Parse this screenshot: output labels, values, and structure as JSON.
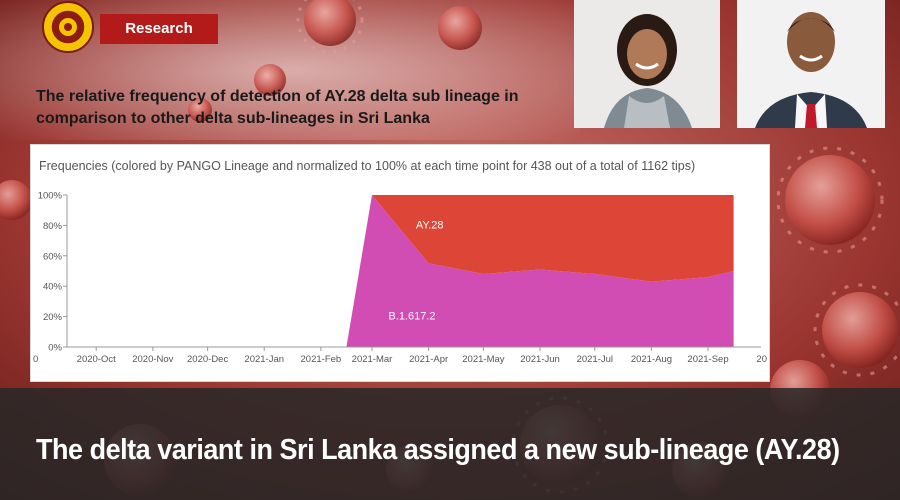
{
  "header": {
    "tag_label": "Research",
    "logo_icon": "university-seal-icon"
  },
  "headline": {
    "line1": "The relative frequency of detection of AY.28 delta sub lineage in",
    "line2": "comparison to other delta sub-lineages in Sri Lanka"
  },
  "photos": [
    {
      "icon": "woman-portrait-icon"
    },
    {
      "icon": "man-portrait-icon"
    }
  ],
  "caption": "The delta variant in Sri Lanka assigned a new sub-lineage (AY.28)",
  "chart_data": {
    "type": "area",
    "title": "Frequencies (colored by PANGO Lineage and normalized to 100% at each time point for 438 out of a total of 1162 tips)",
    "x_ticks": [
      "2020-Oct",
      "2020-Nov",
      "2020-Dec",
      "2021-Jan",
      "2021-Feb",
      "2021-Mar",
      "2021-Apr",
      "2021-May",
      "2021-Jun",
      "2021-Jul",
      "2021-Aug",
      "2021-Sep"
    ],
    "edge_left_label": "0",
    "edge_right_label": "20",
    "y_ticks": [
      "0%",
      "20%",
      "40%",
      "60%",
      "80%",
      "100%"
    ],
    "ylim": [
      0,
      100
    ],
    "x": [
      "2021-02-15",
      "2021-03-01",
      "2021-04-01",
      "2021-05-01",
      "2021-06-01",
      "2021-07-01",
      "2021-08-01",
      "2021-09-01",
      "2021-09-15"
    ],
    "series": [
      {
        "name": "B.1.617.2",
        "color": "#d14cb3",
        "values": [
          0,
          100,
          55,
          48,
          51,
          48,
          43,
          46,
          50
        ]
      },
      {
        "name": "AY.28",
        "color": "#dd4637",
        "values": [
          0,
          0,
          45,
          52,
          49,
          52,
          57,
          54,
          50
        ]
      }
    ],
    "grid": false
  },
  "colors": {
    "tag_bg": "#b31b1b",
    "banner_bg": "#2b2b2b",
    "background": "#8e2a26"
  }
}
